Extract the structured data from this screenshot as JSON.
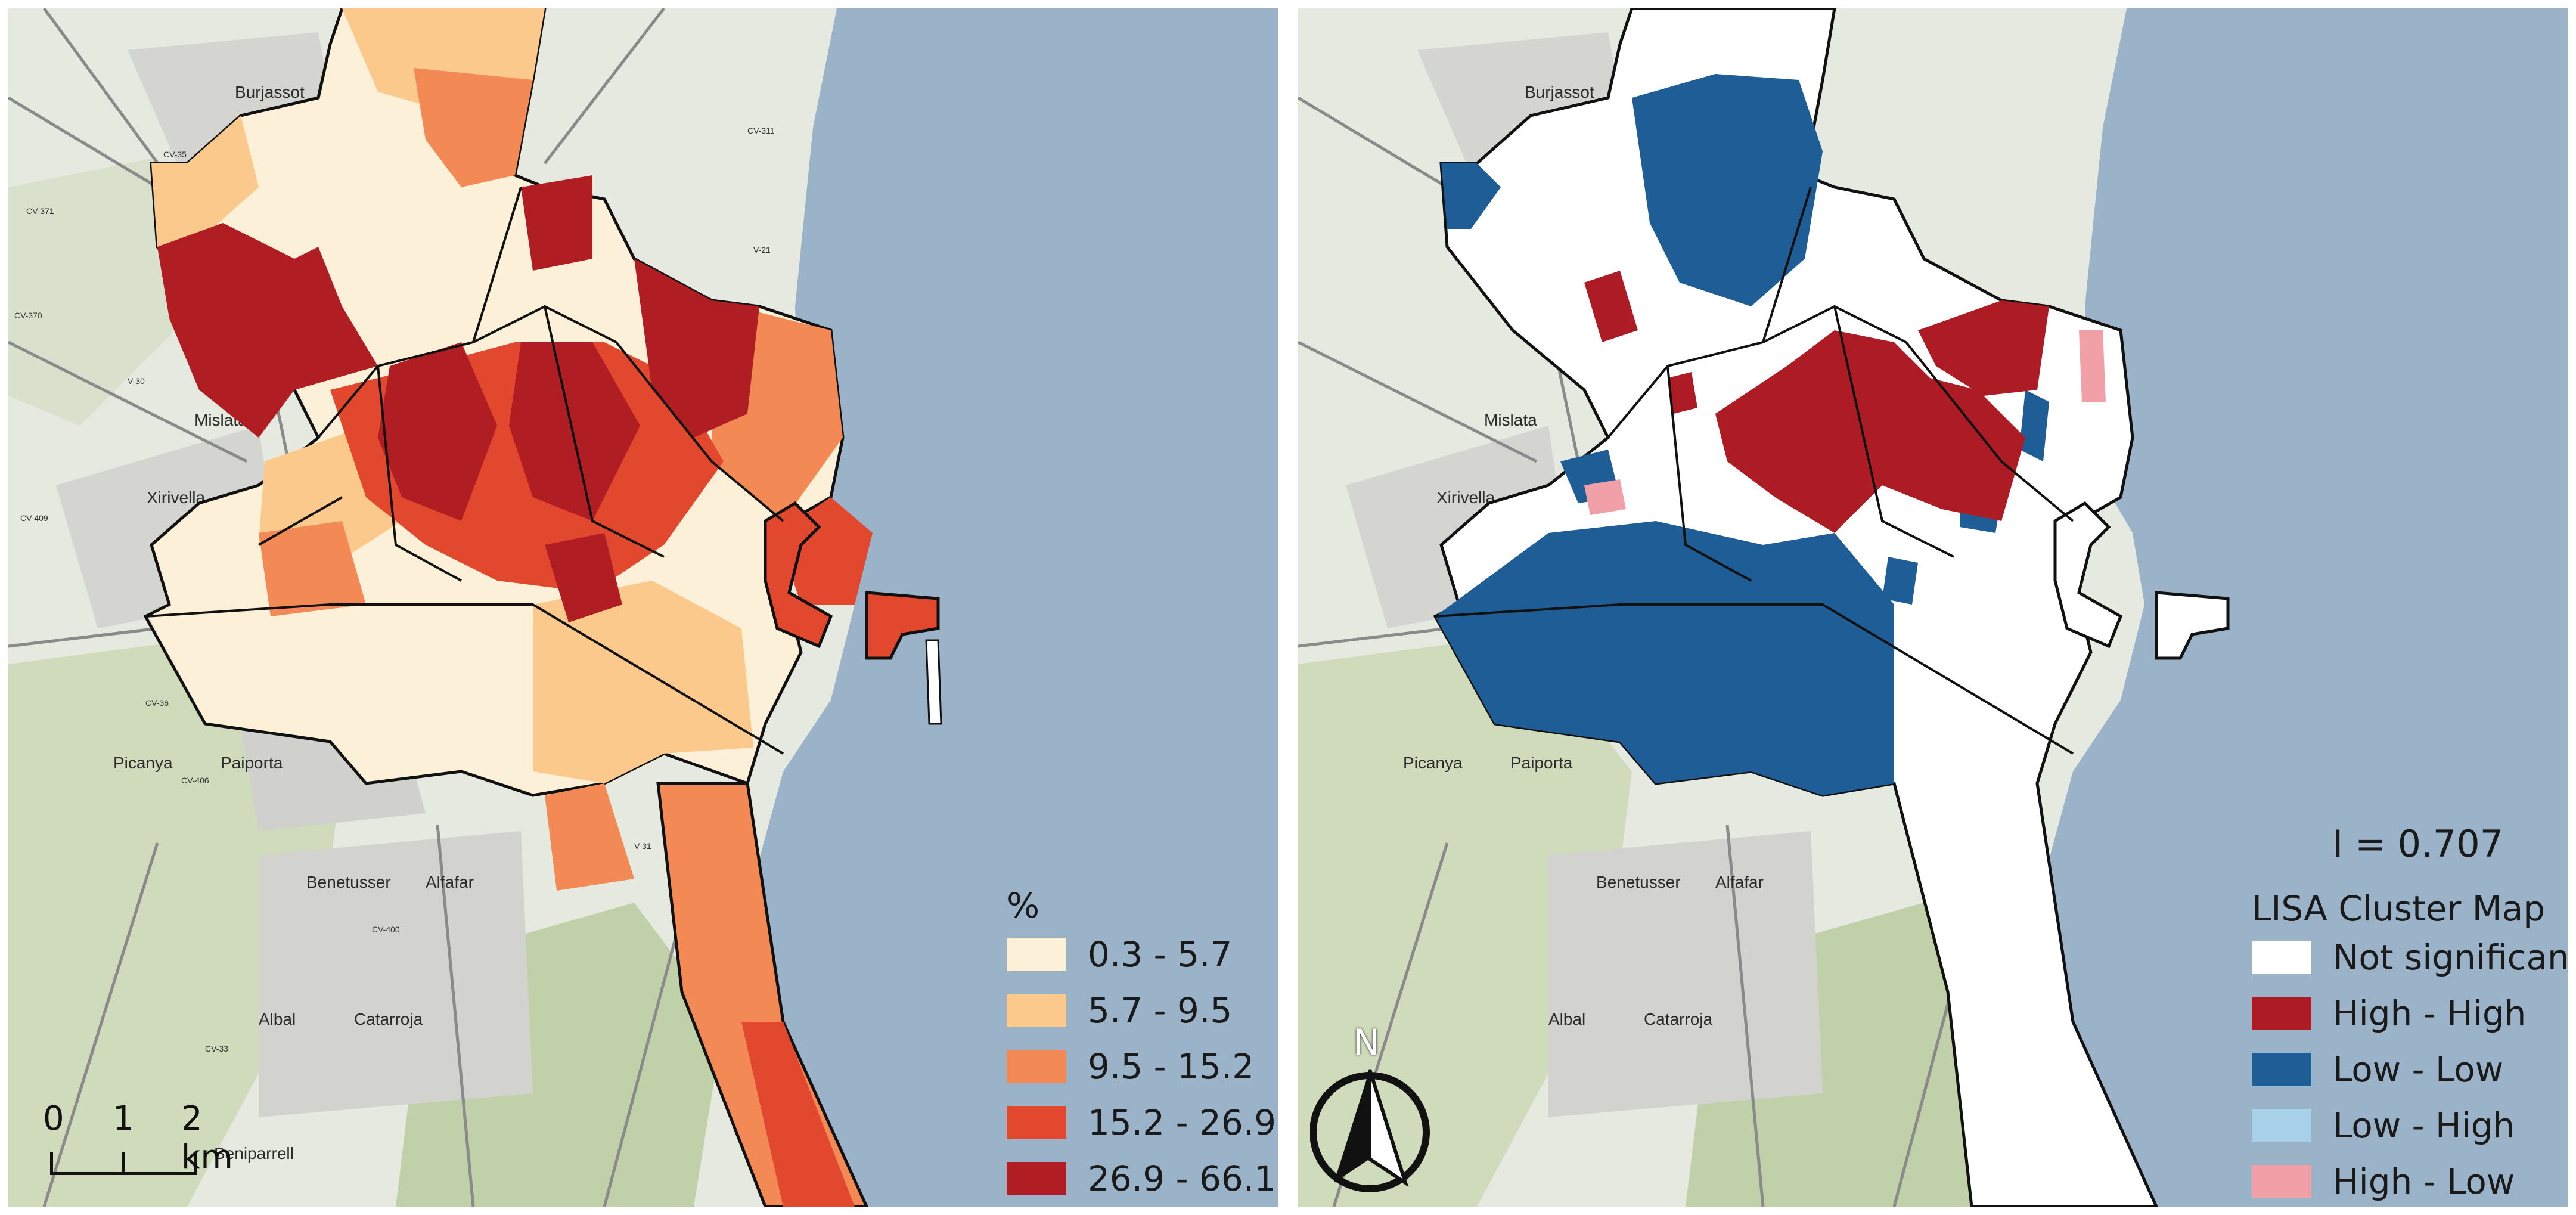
{
  "left_map": {
    "legend_title": "%",
    "classes": [
      {
        "label": "0.3 - 5.7",
        "color": "#fdf0d8"
      },
      {
        "label": "5.7 - 9.5",
        "color": "#fbc98c"
      },
      {
        "label": "9.5 - 15.2",
        "color": "#f38a55"
      },
      {
        "label": "15.2 - 26.9",
        "color": "#e2482e"
      },
      {
        "label": "26.9 - 66.1",
        "color": "#b01d22"
      }
    ],
    "scalebar": {
      "labels": [
        "0",
        "1",
        "2 km"
      ]
    }
  },
  "right_map": {
    "statistic": "I = 0.707",
    "legend_title": "LISA Cluster Map",
    "classes": [
      {
        "label": "Not significant",
        "color": "#ffffff"
      },
      {
        "label": "High - High",
        "color": "#ad1c24"
      },
      {
        "label": "Low - Low",
        "color": "#1e5d96"
      },
      {
        "label": "Low - High",
        "color": "#a8d0e8"
      },
      {
        "label": "High - Low",
        "color": "#f2a0a8"
      }
    ],
    "north_arrow": "N"
  },
  "basemap": {
    "sea_color": "#9bb3c8",
    "land_color": "#e8ebe2",
    "places": [
      "Burjassot",
      "Mislata",
      "Xirivella",
      "Picanya",
      "Paiporta",
      "Benetusser",
      "Alfafar",
      "Albal",
      "Catarroja",
      "Beniparrell"
    ],
    "road_labels": [
      "CV-35",
      "CV-371",
      "CV-370",
      "V-30",
      "CV-409",
      "CV-36",
      "CV-406",
      "CV-400",
      "CV-33",
      "V-31",
      "CV-311",
      "V-21"
    ]
  }
}
